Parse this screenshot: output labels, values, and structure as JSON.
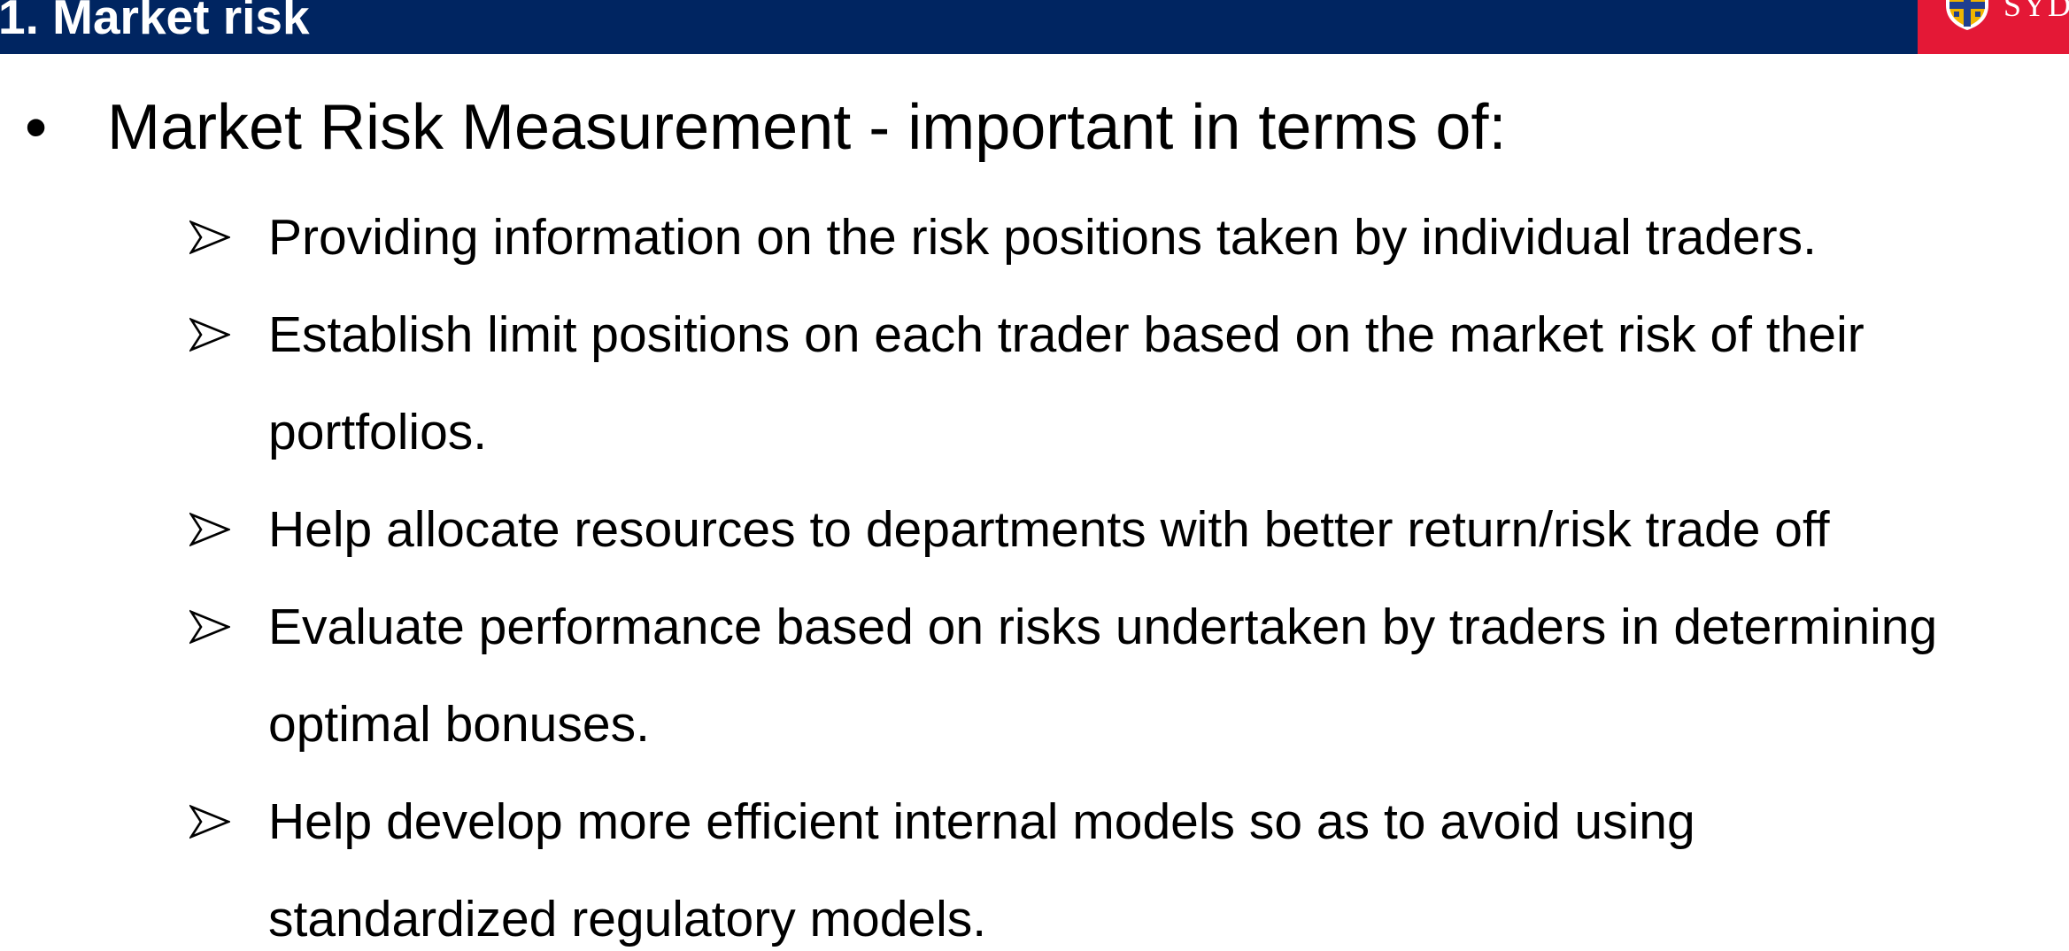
{
  "header": {
    "title": "1. Market risk",
    "logo_text": "SYDNEY",
    "logo_name": "university-of-sydney-logo",
    "colors": {
      "bar": "#002561",
      "logo_background": "#e41836",
      "text": "#ffffff"
    }
  },
  "content": {
    "bullet_glyph": "•",
    "heading": "Market Risk Measurement - important in terms of:",
    "sub_bullet_icon": "arrowhead-bullet-icon",
    "items": [
      {
        "lines": [
          "Providing information on the risk positions taken by individual traders."
        ]
      },
      {
        "lines": [
          "Establish limit positions on each trader based on the market risk of their",
          "portfolios."
        ]
      },
      {
        "lines": [
          "Help allocate resources to departments with better return/risk trade off"
        ]
      },
      {
        "lines": [
          "Evaluate performance based on risks undertaken by traders in determining",
          "optimal bonuses."
        ]
      },
      {
        "lines": [
          "Help develop more efficient internal models so as to avoid using",
          "standardized regulatory models."
        ]
      }
    ]
  }
}
